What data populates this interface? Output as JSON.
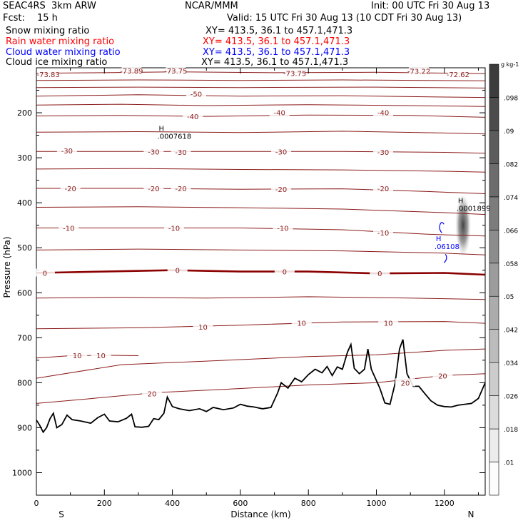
{
  "header": {
    "model": "SEAC4RS  3km ARW",
    "center": "NCAR/MMM",
    "init": "Init: 00 UTC Fri 30 Aug 13",
    "fcst_label": "Fcst:",
    "fcst_value": "15 h",
    "valid": "Valid: 15 UTC Fri 30 Aug 13 (10 CDT Fri 30 Aug 13)"
  },
  "fields": [
    {
      "name": "Snow mixing ratio",
      "xy": "XY= 413.5, 36.1 to 457.1,471.3",
      "color": "#000000"
    },
    {
      "name": "Rain water mixing ratio",
      "xy": "XY= 413.5, 36.1 to 457.1,471.3",
      "color": "#ff0000"
    },
    {
      "name": "Cloud water mixing ratio",
      "xy": "XY= 413.5, 36.1 to 457.1,471.3",
      "color": "#0000ff"
    },
    {
      "name": "Cloud ice mixing ratio",
      "xy": "XY= 413.5, 36.1 to 457.1,471.3",
      "color": "#000000"
    }
  ],
  "colors": {
    "isotherm": "#8b1a1a",
    "zero_isotherm": "#8b0000",
    "terrain": "#000000",
    "cloud_water_contour": "#0000ff",
    "cloud_ice_shade": "#555555"
  },
  "chart_data": {
    "type": "cross-section",
    "xlabel": "Distance (km)",
    "ylabel": "Pressure (hPa)",
    "xlim": [
      0,
      1320
    ],
    "ylim": [
      1050,
      100
    ],
    "x_ticks": [
      0,
      200,
      400,
      600,
      800,
      1000,
      1200
    ],
    "y_ticks": [
      200,
      300,
      400,
      500,
      600,
      700,
      800,
      900,
      1000
    ],
    "endpoints": {
      "left": "S",
      "right": "N"
    },
    "temperature_contour_labels": [
      {
        "x": 35,
        "p": 114,
        "text": "-73.83"
      },
      {
        "x": 280,
        "p": 106,
        "text": "-73.89"
      },
      {
        "x": 410,
        "p": 106,
        "text": "-73.75"
      },
      {
        "x": 760,
        "p": 112,
        "text": "-73.75"
      },
      {
        "x": 1125,
        "p": 107,
        "text": "-73.22"
      },
      {
        "x": 1240,
        "p": 114,
        "text": "-72.62"
      },
      {
        "x": 470,
        "p": 158,
        "text": "-50"
      },
      {
        "x": 460,
        "p": 208,
        "text": "-40"
      },
      {
        "x": 715,
        "p": 199,
        "text": "-40"
      },
      {
        "x": 1020,
        "p": 199,
        "text": "-40"
      },
      {
        "x": 90,
        "p": 284,
        "text": "-30"
      },
      {
        "x": 345,
        "p": 286,
        "text": "-30"
      },
      {
        "x": 425,
        "p": 287,
        "text": "-30"
      },
      {
        "x": 720,
        "p": 286,
        "text": "-30"
      },
      {
        "x": 1020,
        "p": 287,
        "text": "-30"
      },
      {
        "x": 100,
        "p": 368,
        "text": "-20"
      },
      {
        "x": 345,
        "p": 368,
        "text": "-20"
      },
      {
        "x": 425,
        "p": 368,
        "text": "-20"
      },
      {
        "x": 720,
        "p": 370,
        "text": "-20"
      },
      {
        "x": 1020,
        "p": 368,
        "text": "-20"
      },
      {
        "x": 95,
        "p": 456,
        "text": "-10"
      },
      {
        "x": 405,
        "p": 456,
        "text": "-10"
      },
      {
        "x": 725,
        "p": 456,
        "text": "-10"
      },
      {
        "x": 1020,
        "p": 466,
        "text": "-10"
      },
      {
        "x": 25,
        "p": 556,
        "text": "0"
      },
      {
        "x": 415,
        "p": 550,
        "text": "0"
      },
      {
        "x": 730,
        "p": 553,
        "text": "0"
      },
      {
        "x": 1010,
        "p": 557,
        "text": "0"
      },
      {
        "x": 490,
        "p": 676,
        "text": "10"
      },
      {
        "x": 780,
        "p": 667,
        "text": "10"
      },
      {
        "x": 1035,
        "p": 667,
        "text": "10"
      },
      {
        "x": 120,
        "p": 739,
        "text": "10"
      },
      {
        "x": 190,
        "p": 739,
        "text": "10"
      },
      {
        "x": 340,
        "p": 824,
        "text": "20"
      },
      {
        "x": 1085,
        "p": 800,
        "text": "20"
      },
      {
        "x": 1195,
        "p": 784,
        "text": "20"
      }
    ],
    "extrema_labels": [
      {
        "field": "Cloud ice mixing ratio",
        "marker": "H",
        "value": ".0007618",
        "x": 360,
        "p": 250
      },
      {
        "field": "Cloud ice mixing ratio",
        "marker": "H",
        "value": ".0001899",
        "x": 1240,
        "p": 410
      },
      {
        "field": "Cloud water mixing ratio",
        "marker": "H",
        "value": ".06108",
        "x": 1175,
        "p": 495
      }
    ],
    "isotherms": [
      {
        "level": -70,
        "points": [
          [
            0,
            112
          ],
          [
            200,
            111
          ],
          [
            400,
            109
          ],
          [
            700,
            111
          ],
          [
            1000,
            110
          ],
          [
            1320,
            113
          ]
        ]
      },
      {
        "level": -60,
        "points": [
          [
            0,
            128
          ],
          [
            300,
            127
          ],
          [
            600,
            128
          ],
          [
            900,
            127
          ],
          [
            1320,
            129
          ]
        ]
      },
      {
        "level": -55,
        "points": [
          [
            0,
            144
          ],
          [
            300,
            143
          ],
          [
            600,
            144
          ],
          [
            1000,
            143
          ],
          [
            1320,
            145
          ]
        ]
      },
      {
        "level": -50,
        "points": [
          [
            0,
            163
          ],
          [
            300,
            160
          ],
          [
            600,
            163
          ],
          [
            900,
            162
          ],
          [
            1200,
            165
          ],
          [
            1320,
            166
          ]
        ]
      },
      {
        "level": -45,
        "points": [
          [
            0,
            183
          ],
          [
            250,
            181
          ],
          [
            500,
            184
          ],
          [
            800,
            182
          ],
          [
            1100,
            184
          ],
          [
            1320,
            186
          ]
        ]
      },
      {
        "level": -40,
        "points": [
          [
            0,
            207
          ],
          [
            250,
            206
          ],
          [
            500,
            208
          ],
          [
            800,
            205
          ],
          [
            1100,
            206
          ],
          [
            1320,
            210
          ]
        ]
      },
      {
        "level": -35,
        "points": [
          [
            0,
            243
          ],
          [
            300,
            242
          ],
          [
            600,
            244
          ],
          [
            900,
            241
          ],
          [
            1200,
            245
          ],
          [
            1320,
            247
          ]
        ]
      },
      {
        "level": -30,
        "points": [
          [
            0,
            286
          ],
          [
            300,
            286
          ],
          [
            600,
            286
          ],
          [
            900,
            286
          ],
          [
            1200,
            288
          ],
          [
            1320,
            290
          ]
        ]
      },
      {
        "level": -25,
        "points": [
          [
            0,
            325
          ],
          [
            300,
            324
          ],
          [
            600,
            326
          ],
          [
            900,
            327
          ],
          [
            1200,
            330
          ],
          [
            1320,
            332
          ]
        ]
      },
      {
        "level": -20,
        "points": [
          [
            0,
            368
          ],
          [
            300,
            368
          ],
          [
            600,
            370
          ],
          [
            900,
            369
          ],
          [
            1150,
            375
          ],
          [
            1320,
            380
          ]
        ]
      },
      {
        "level": -15,
        "points": [
          [
            0,
            410
          ],
          [
            300,
            409
          ],
          [
            600,
            411
          ],
          [
            900,
            414
          ],
          [
            1200,
            422
          ],
          [
            1320,
            426
          ]
        ]
      },
      {
        "level": -10,
        "points": [
          [
            0,
            456
          ],
          [
            300,
            456
          ],
          [
            600,
            456
          ],
          [
            900,
            460
          ],
          [
            1150,
            470
          ],
          [
            1320,
            474
          ]
        ]
      },
      {
        "level": -5,
        "points": [
          [
            0,
            505
          ],
          [
            300,
            503
          ],
          [
            600,
            505
          ],
          [
            900,
            507
          ],
          [
            1200,
            512
          ],
          [
            1320,
            516
          ]
        ]
      },
      {
        "level": 0,
        "points": [
          [
            0,
            556
          ],
          [
            200,
            553
          ],
          [
            400,
            550
          ],
          [
            600,
            553
          ],
          [
            800,
            553
          ],
          [
            1000,
            557
          ],
          [
            1200,
            556
          ],
          [
            1320,
            560
          ]
        ]
      },
      {
        "level": 5,
        "points": [
          [
            0,
            612
          ],
          [
            250,
            610
          ],
          [
            500,
            612
          ],
          [
            800,
            609
          ],
          [
            1100,
            612
          ],
          [
            1320,
            615
          ]
        ]
      },
      {
        "level": 10,
        "points": [
          [
            0,
            680
          ],
          [
            300,
            678
          ],
          [
            600,
            672
          ],
          [
            900,
            665
          ],
          [
            1200,
            664
          ],
          [
            1320,
            668
          ]
        ]
      },
      {
        "level": 10,
        "points": [
          [
            0,
            745
          ],
          [
            100,
            740
          ],
          [
            200,
            739
          ],
          [
            300,
            740
          ]
        ]
      },
      {
        "level": 15,
        "points": [
          [
            0,
            790
          ],
          [
            250,
            760
          ],
          [
            500,
            752
          ],
          [
            800,
            742
          ],
          [
            1000,
            738
          ],
          [
            1200,
            728
          ],
          [
            1320,
            725
          ]
        ]
      },
      {
        "level": 20,
        "points": [
          [
            0,
            846
          ],
          [
            150,
            836
          ],
          [
            350,
            822
          ],
          [
            550,
            815
          ],
          [
            800,
            805
          ],
          [
            1000,
            800
          ],
          [
            1200,
            784
          ],
          [
            1320,
            780
          ]
        ]
      }
    ],
    "terrain_pressure": [
      [
        0,
        883
      ],
      [
        10,
        895
      ],
      [
        20,
        910
      ],
      [
        30,
        900
      ],
      [
        40,
        880
      ],
      [
        50,
        868
      ],
      [
        60,
        900
      ],
      [
        75,
        893
      ],
      [
        90,
        872
      ],
      [
        105,
        882
      ],
      [
        130,
        885
      ],
      [
        160,
        890
      ],
      [
        180,
        878
      ],
      [
        200,
        870
      ],
      [
        215,
        885
      ],
      [
        240,
        887
      ],
      [
        265,
        879
      ],
      [
        280,
        870
      ],
      [
        290,
        898
      ],
      [
        310,
        899
      ],
      [
        330,
        897
      ],
      [
        345,
        880
      ],
      [
        360,
        882
      ],
      [
        375,
        868
      ],
      [
        385,
        832
      ],
      [
        400,
        853
      ],
      [
        420,
        858
      ],
      [
        450,
        862
      ],
      [
        480,
        858
      ],
      [
        500,
        864
      ],
      [
        520,
        855
      ],
      [
        550,
        860
      ],
      [
        580,
        856
      ],
      [
        600,
        848
      ],
      [
        620,
        852
      ],
      [
        640,
        854
      ],
      [
        665,
        858
      ],
      [
        690,
        855
      ],
      [
        710,
        822
      ],
      [
        720,
        800
      ],
      [
        740,
        812
      ],
      [
        760,
        790
      ],
      [
        780,
        798
      ],
      [
        800,
        782
      ],
      [
        820,
        770
      ],
      [
        840,
        778
      ],
      [
        855,
        764
      ],
      [
        870,
        784
      ],
      [
        885,
        765
      ],
      [
        900,
        770
      ],
      [
        915,
        732
      ],
      [
        925,
        715
      ],
      [
        935,
        768
      ],
      [
        950,
        780
      ],
      [
        965,
        770
      ],
      [
        975,
        725
      ],
      [
        985,
        770
      ],
      [
        1000,
        795
      ],
      [
        1010,
        812
      ],
      [
        1025,
        845
      ],
      [
        1040,
        848
      ],
      [
        1055,
        802
      ],
      [
        1068,
        725
      ],
      [
        1078,
        704
      ],
      [
        1090,
        780
      ],
      [
        1108,
        808
      ],
      [
        1125,
        808
      ],
      [
        1140,
        822
      ],
      [
        1160,
        840
      ],
      [
        1180,
        850
      ],
      [
        1200,
        853
      ],
      [
        1220,
        854
      ],
      [
        1240,
        850
      ],
      [
        1260,
        848
      ],
      [
        1280,
        846
      ],
      [
        1300,
        835
      ],
      [
        1320,
        800
      ]
    ],
    "colorbar": {
      "unit": "g kg-1",
      "labels": [
        ".01",
        ".018",
        ".026",
        ".034",
        ".042",
        ".05",
        ".058",
        ".066",
        ".074",
        ".082",
        ".09",
        ".098"
      ],
      "values": [
        0.01,
        0.018,
        0.026,
        0.034,
        0.042,
        0.05,
        0.058,
        0.066,
        0.074,
        0.082,
        0.09,
        0.098
      ]
    },
    "cloud_ice_shading": {
      "x_center": 1255,
      "p_top": 380,
      "p_bottom": 520,
      "value": 0.0001899
    }
  }
}
